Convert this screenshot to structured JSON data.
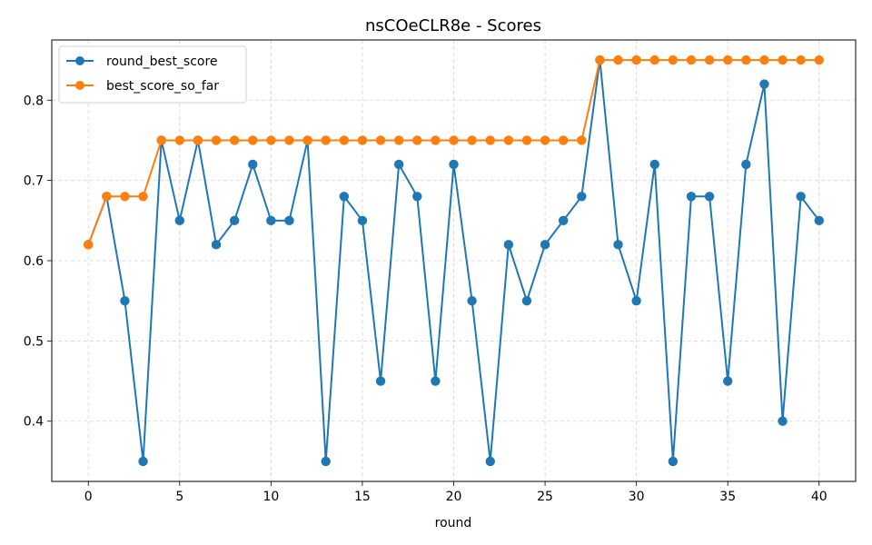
{
  "chart_data": {
    "type": "line",
    "title": "nsCOeCLR8e - Scores",
    "xlabel": "round",
    "ylabel": "",
    "xlim": [
      -2,
      42
    ],
    "ylim": [
      0.325,
      0.875
    ],
    "xticks": [
      0,
      5,
      10,
      15,
      20,
      25,
      30,
      35,
      40
    ],
    "yticks": [
      0.4,
      0.5,
      0.6,
      0.7,
      0.8
    ],
    "grid": true,
    "legend_position": "top-left",
    "x": [
      0,
      1,
      2,
      3,
      4,
      5,
      6,
      7,
      8,
      9,
      10,
      11,
      12,
      13,
      14,
      15,
      16,
      17,
      18,
      19,
      20,
      21,
      22,
      23,
      24,
      25,
      26,
      27,
      28,
      29,
      30,
      31,
      32,
      33,
      34,
      35,
      36,
      37,
      38,
      39,
      40
    ],
    "series": [
      {
        "name": "round_best_score",
        "color": "#1f77b4",
        "values": [
          0.62,
          0.68,
          0.55,
          0.35,
          0.75,
          0.65,
          0.75,
          0.62,
          0.65,
          0.72,
          0.65,
          0.65,
          0.75,
          0.35,
          0.68,
          0.65,
          0.45,
          0.72,
          0.68,
          0.45,
          0.72,
          0.55,
          0.35,
          0.62,
          0.55,
          0.62,
          0.65,
          0.68,
          0.85,
          0.62,
          0.55,
          0.72,
          0.35,
          0.68,
          0.68,
          0.45,
          0.72,
          0.82,
          0.4,
          0.68,
          0.65
        ]
      },
      {
        "name": "best_score_so_far",
        "color": "#ff7f0e",
        "values": [
          0.62,
          0.68,
          0.68,
          0.68,
          0.75,
          0.75,
          0.75,
          0.75,
          0.75,
          0.75,
          0.75,
          0.75,
          0.75,
          0.75,
          0.75,
          0.75,
          0.75,
          0.75,
          0.75,
          0.75,
          0.75,
          0.75,
          0.75,
          0.75,
          0.75,
          0.75,
          0.75,
          0.75,
          0.85,
          0.85,
          0.85,
          0.85,
          0.85,
          0.85,
          0.85,
          0.85,
          0.85,
          0.85,
          0.85,
          0.85,
          0.85
        ]
      }
    ]
  }
}
